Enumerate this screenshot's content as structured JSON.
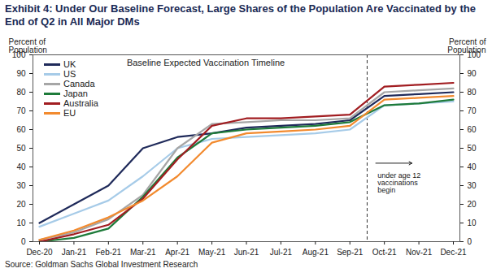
{
  "chart_data": {
    "type": "line",
    "title": "Exhibit 4: Under Our Baseline Forecast, Large Shares of the Population Are Vaccinated by the End of Q2 in All Major DMs",
    "source": "Source: Goldman Sachs Global Investment Research",
    "y_label": "Percent of Population",
    "y2_label": "Percent of Population",
    "annotations": [
      "Baseline Expected Vaccination Timeline",
      "under age 12 vaccinations begin"
    ],
    "categories": [
      "Dec-20",
      "Jan-21",
      "Feb-21",
      "Mar-21",
      "Apr-21",
      "May-21",
      "Jun-21",
      "Jul-21",
      "Aug-21",
      "Sep-21",
      "Oct-21",
      "Nov-21",
      "Dec-21"
    ],
    "series": [
      {
        "name": "UK",
        "color": "#1f2a5a",
        "values": [
          10,
          20,
          30,
          50,
          56,
          58,
          61,
          62,
          63,
          65,
          78,
          79,
          80
        ]
      },
      {
        "name": "US",
        "color": "#a6cbe8",
        "values": [
          8,
          15,
          22,
          35,
          50,
          55,
          56,
          57,
          58,
          60,
          73,
          74,
          75
        ]
      },
      {
        "name": "Canada",
        "color": "#a6a6a6",
        "values": [
          1,
          5,
          12,
          25,
          50,
          63,
          64,
          65,
          65,
          66,
          80,
          81,
          82
        ]
      },
      {
        "name": "Japan",
        "color": "#1e7b3a",
        "values": [
          0,
          2,
          7,
          24,
          45,
          58,
          60,
          61,
          62,
          64,
          73,
          74,
          76
        ]
      },
      {
        "name": "Australia",
        "color": "#a11d21",
        "values": [
          0,
          4,
          9,
          23,
          44,
          62,
          66,
          66,
          67,
          68,
          83,
          84,
          85
        ]
      },
      {
        "name": "EU",
        "color": "#f28a2e",
        "values": [
          1,
          6,
          13,
          22,
          35,
          53,
          58,
          59,
          60,
          62,
          76,
          77,
          78
        ]
      }
    ],
    "ylim": [
      0,
      100
    ],
    "yticks": [
      0,
      10,
      20,
      30,
      40,
      50,
      60,
      70,
      80,
      90,
      100
    ],
    "y2lim": [
      0,
      100
    ],
    "y2ticks": [
      0,
      10,
      20,
      30,
      40,
      50,
      60,
      70,
      80,
      90,
      100
    ],
    "grid": false,
    "legend": "top-left",
    "vline": {
      "between": [
        "Sep-21",
        "Oct-21"
      ],
      "line_style": "dashed"
    }
  }
}
